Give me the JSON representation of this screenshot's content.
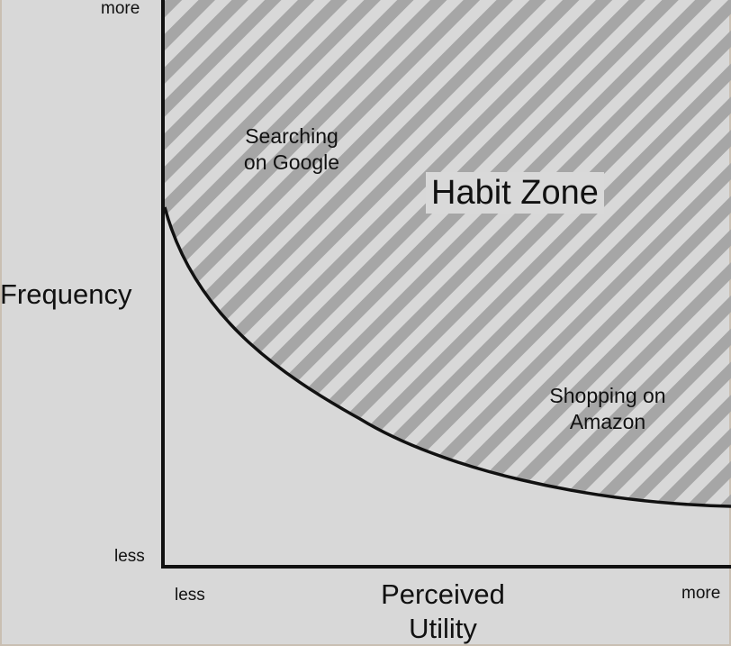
{
  "y_axis": {
    "title": "Frequency",
    "top_label": "more",
    "bottom_label": "less"
  },
  "x_axis": {
    "title_line1": "Perceived",
    "title_line2": "Utility",
    "left_label": "less",
    "right_label": "more"
  },
  "zone": {
    "label": "Habit Zone"
  },
  "examples": {
    "google": {
      "line1": "Searching",
      "line2": "on Google"
    },
    "amazon": {
      "line1": "Shopping on",
      "line2": "Amazon"
    }
  },
  "colors": {
    "background": "#d9d9d9",
    "stripe": "#a6a6a6",
    "axis": "#111111"
  }
}
